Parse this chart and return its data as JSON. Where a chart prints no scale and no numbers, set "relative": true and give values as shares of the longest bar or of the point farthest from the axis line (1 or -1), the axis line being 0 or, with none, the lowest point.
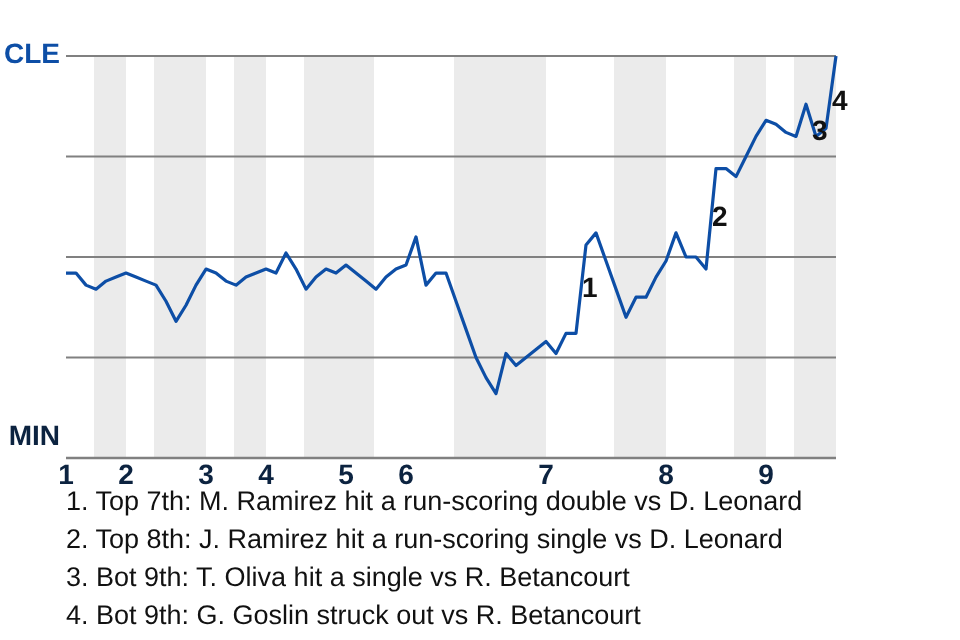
{
  "chart_data": {
    "type": "line",
    "relative": true,
    "categories": [
      "1",
      null,
      null,
      null,
      null,
      null,
      "2",
      null,
      null,
      null,
      null,
      null,
      null,
      null,
      "3",
      null,
      null,
      null,
      null,
      null,
      "4",
      null,
      null,
      null,
      null,
      null,
      null,
      null,
      "5",
      null,
      null,
      null,
      null,
      null,
      "6",
      null,
      null,
      null,
      null,
      null,
      null,
      null,
      null,
      null,
      null,
      null,
      null,
      null,
      "7",
      null,
      null,
      null,
      null,
      null,
      null,
      null,
      null,
      null,
      null,
      null,
      "8",
      null,
      null,
      null,
      null,
      null,
      null,
      null,
      null,
      null,
      "9",
      null,
      null,
      null,
      null,
      null,
      null,
      null
    ],
    "marker": "none",
    "line_style": "solid",
    "ref_lines": [
      {
        "axis": "y",
        "value": 1,
        "color": "#808080"
      },
      {
        "axis": "y",
        "value": 0.75,
        "color": "#808080"
      },
      {
        "axis": "y",
        "value": 0.5,
        "color": "#808080"
      },
      {
        "axis": "y",
        "value": 0.25,
        "color": "#808080"
      }
    ],
    "series": [
      {
        "color": "#0d4ea6",
        "values": [
          0.46,
          0.46,
          0.43,
          0.42,
          0.44,
          0.45,
          0.46,
          0.45,
          0.44,
          0.43,
          0.39,
          0.34,
          0.38,
          0.43,
          0.47,
          0.46,
          0.44,
          0.43,
          0.45,
          0.46,
          0.47,
          0.46,
          0.51,
          0.47,
          0.42,
          0.45,
          0.47,
          0.46,
          0.48,
          0.46,
          0.44,
          0.42,
          0.45,
          0.47,
          0.48,
          0.55,
          0.43,
          0.46,
          0.46,
          0.39,
          0.32,
          0.25,
          0.2,
          0.16,
          0.26,
          0.23,
          0.25,
          0.27,
          0.29,
          0.26,
          0.31,
          0.31,
          0.53,
          0.56,
          0.49,
          0.42,
          0.35,
          0.4,
          0.4,
          0.45,
          0.49,
          0.56,
          0.5,
          0.5,
          0.47,
          0.72,
          0.72,
          0.7,
          0.75,
          0.8,
          0.84,
          0.83,
          0.81,
          0.8,
          0.88,
          0.8,
          0.82,
          1
        ]
      }
    ],
    "annotations": [
      "CLE",
      "MIN",
      {
        "text": "1",
        "y": 0.42
      },
      {
        "text": "2",
        "y": 0.595
      },
      {
        "text": "3",
        "y": 0.81
      },
      {
        "text": "4",
        "y": 0.885
      },
      "1. Top 7th: M. Ramirez hit a run-scoring double vs D. Leonard",
      "2. Top 8th: J. Ramirez hit a run-scoring single vs D. Leonard",
      "3. Bot 9th: T. Oliva hit a single vs R. Betancourt",
      "4. Bot 9th: G. Goslin struck out vs R. Betancourt"
    ]
  }
}
